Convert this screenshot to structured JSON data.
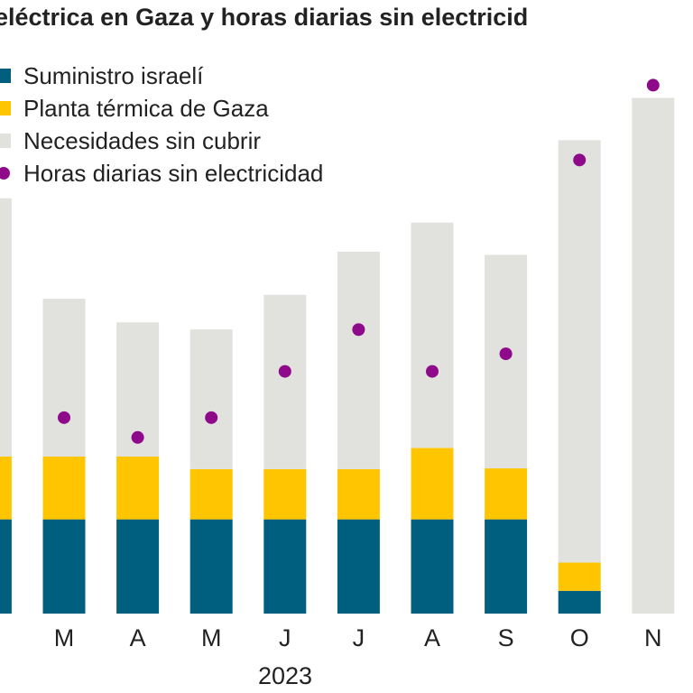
{
  "chart_data": {
    "type": "bar",
    "stacked": true,
    "title": "eléctrica en Gaza y horas diarias sin electricid",
    "categories": [
      "",
      "M",
      "A",
      "M",
      "J",
      "J",
      "A",
      "S",
      "O",
      "N"
    ],
    "year_label": "2023",
    "series": [
      {
        "name": "Suministro israelí",
        "color": "#005f7f",
        "values": [
          120,
          120,
          120,
          120,
          120,
          120,
          120,
          120,
          29,
          0
        ]
      },
      {
        "name": "Planta térmica de Gaza",
        "color": "#ffc500",
        "values": [
          80,
          80,
          80,
          64,
          64,
          64,
          91,
          65,
          36,
          0
        ]
      },
      {
        "name": "Necesidades sin cubrir",
        "color": "#e1e2dd",
        "values": [
          329,
          201,
          171,
          178,
          222,
          277,
          287,
          272,
          538,
          657
        ]
      }
    ],
    "dot_series": {
      "name": "Horas diarias sin electricidad",
      "color": "#8e0a8a",
      "values": [
        null,
        8.9,
        8.0,
        8.9,
        11.0,
        12.9,
        11.0,
        11.8,
        20.6,
        24.0
      ]
    },
    "grid": false,
    "legend": "top-left"
  }
}
